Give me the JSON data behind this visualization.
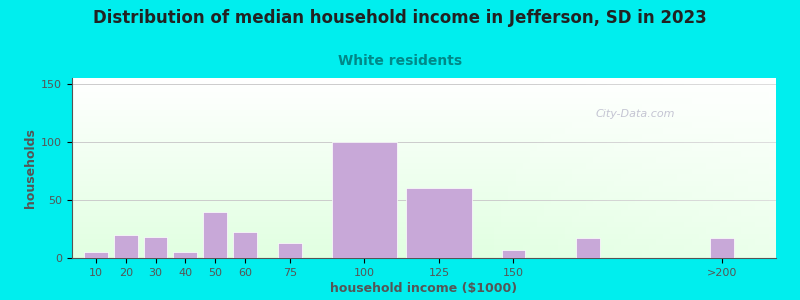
{
  "title": "Distribution of median household income in Jefferson, SD in 2023",
  "subtitle": "White residents",
  "xlabel": "household income ($1000)",
  "ylabel": "households",
  "title_fontsize": 12,
  "subtitle_fontsize": 10,
  "subtitle_color": "#008888",
  "title_color": "#222222",
  "bar_positions": [
    10,
    20,
    30,
    40,
    50,
    60,
    75,
    100,
    125,
    150,
    175,
    220
  ],
  "bar_widths": [
    8,
    8,
    8,
    8,
    8,
    8,
    8,
    22,
    22,
    8,
    8,
    8
  ],
  "bar_heights": [
    5,
    20,
    18,
    5,
    40,
    22,
    13,
    100,
    60,
    7,
    17,
    17
  ],
  "bar_color": "#c8a8d8",
  "bar_edgecolor": "#ffffff",
  "background_color": "#00eeee",
  "ylim": [
    0,
    155
  ],
  "yticks": [
    0,
    50,
    100,
    150
  ],
  "xtick_labels": [
    "10",
    "20",
    "30",
    "40",
    "50",
    "60",
    "75",
    "100",
    "125",
    "150",
    ">200"
  ],
  "xtick_positions": [
    10,
    20,
    30,
    40,
    50,
    60,
    75,
    100,
    125,
    150,
    220
  ],
  "watermark": "City-Data.com",
  "watermark_color": "#bbbbcc",
  "grid_color": "#cccccc",
  "axis_color": "#555555",
  "xlim": [
    2,
    238
  ]
}
